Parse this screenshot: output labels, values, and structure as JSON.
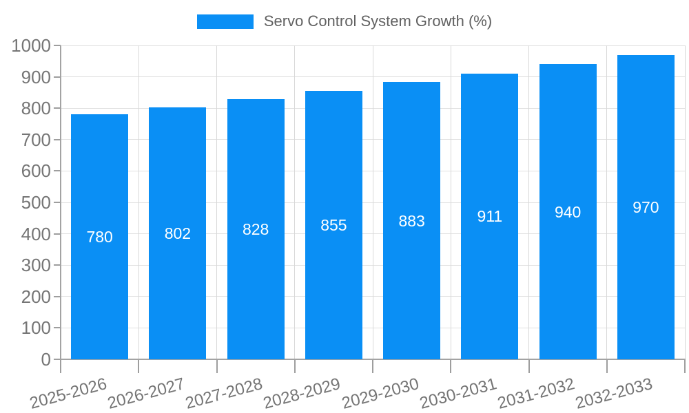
{
  "legend": {
    "label": "Servo Control System Growth (%)"
  },
  "colors": {
    "bar": "#0a8ff5",
    "grid_horizontal": "#e0e0e0",
    "grid_vertical": "#d8d8d8",
    "axis": "#a3a3a3",
    "tick": "#9e9e9e",
    "tick_label": "#757575",
    "legend_text": "#616161",
    "bar_value_label": "#ffffff",
    "background": "#ffffff"
  },
  "chart_data": {
    "type": "bar",
    "title": "Servo Control System Growth (%)",
    "categories": [
      "2025-2026",
      "2026-2027",
      "2027-2028",
      "2028-2029",
      "2029-2030",
      "2030-2031",
      "2031-2032",
      "2032-2033"
    ],
    "values": [
      780,
      802,
      828,
      855,
      883,
      911,
      940,
      970
    ],
    "value_labels": [
      "780",
      "802",
      "828",
      "855",
      "883",
      "911",
      "940",
      "970"
    ],
    "xlabel": "",
    "ylabel": "",
    "ylim": [
      0,
      1000
    ],
    "yticks": [
      0,
      100,
      200,
      300,
      400,
      500,
      600,
      700,
      800,
      900,
      1000
    ],
    "grid": true,
    "legend_position": "top-center",
    "value_label_position": "inside-center",
    "x_label_rotation_deg": -15
  }
}
